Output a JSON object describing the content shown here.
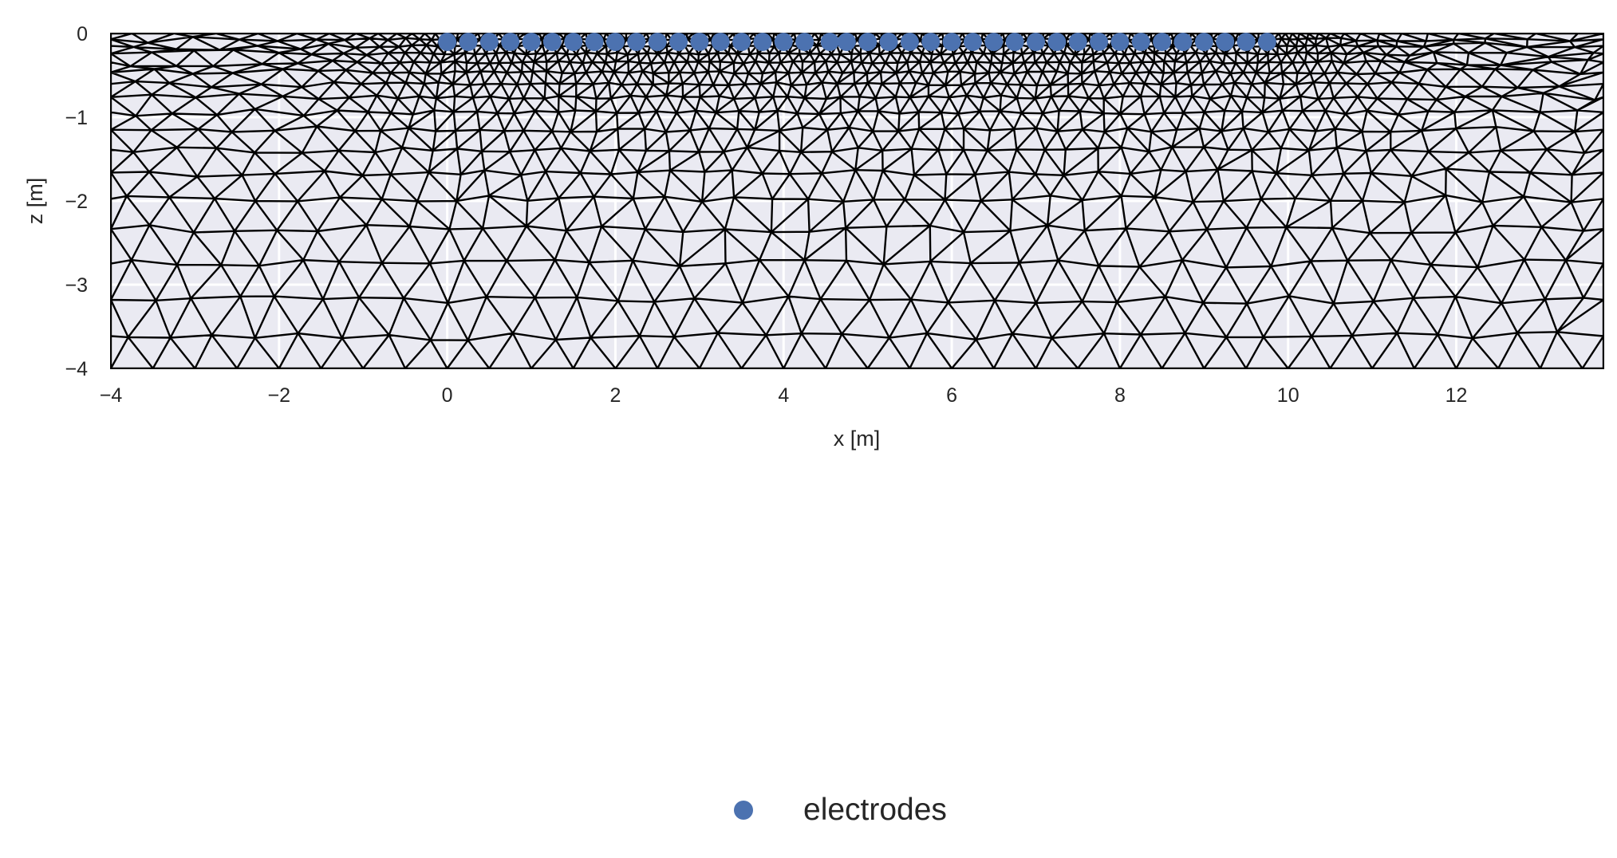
{
  "chart_data": {
    "type": "scatter",
    "title": "",
    "xlabel": "x [m]",
    "ylabel": "z [m]",
    "xlim": [
      -4,
      13.75
    ],
    "ylim": [
      -4,
      0
    ],
    "x_ticks": [
      "−4",
      "−2",
      "0",
      "2",
      "4",
      "6",
      "8",
      "10",
      "12"
    ],
    "y_ticks": [
      "0",
      "−1",
      "−2",
      "−3",
      "−4"
    ],
    "x_tick_values": [
      -4,
      -2,
      0,
      2,
      4,
      6,
      8,
      10,
      12
    ],
    "y_tick_values": [
      0,
      -1,
      -2,
      -3,
      -4
    ],
    "grid": true,
    "background_color": "#eaeaf2",
    "mesh": "triangular finite-element mesh, refined near the surface beneath the electrodes",
    "legend_position": "bottom-center",
    "series": [
      {
        "name": "electrodes",
        "color": "#4c72b0",
        "x": [
          0.0,
          0.25,
          0.5,
          0.75,
          1.0,
          1.25,
          1.5,
          1.75,
          2.0,
          2.25,
          2.5,
          2.75,
          3.0,
          3.25,
          3.5,
          3.75,
          4.0,
          4.25,
          4.55,
          4.75,
          5.0,
          5.25,
          5.5,
          5.75,
          6.0,
          6.25,
          6.5,
          6.75,
          7.0,
          7.25,
          7.5,
          7.75,
          8.0,
          8.25,
          8.5,
          8.75,
          9.0,
          9.25,
          9.5,
          9.75
        ],
        "y": [
          -0.1,
          -0.1,
          -0.1,
          -0.1,
          -0.1,
          -0.1,
          -0.1,
          -0.1,
          -0.1,
          -0.1,
          -0.1,
          -0.1,
          -0.1,
          -0.1,
          -0.1,
          -0.1,
          -0.1,
          -0.1,
          -0.1,
          -0.1,
          -0.1,
          -0.1,
          -0.1,
          -0.1,
          -0.1,
          -0.1,
          -0.1,
          -0.1,
          -0.1,
          -0.1,
          -0.1,
          -0.1,
          -0.1,
          -0.1,
          -0.1,
          -0.1,
          -0.1,
          -0.1,
          -0.1,
          -0.1
        ]
      }
    ]
  },
  "legend": {
    "label": "electrodes"
  }
}
